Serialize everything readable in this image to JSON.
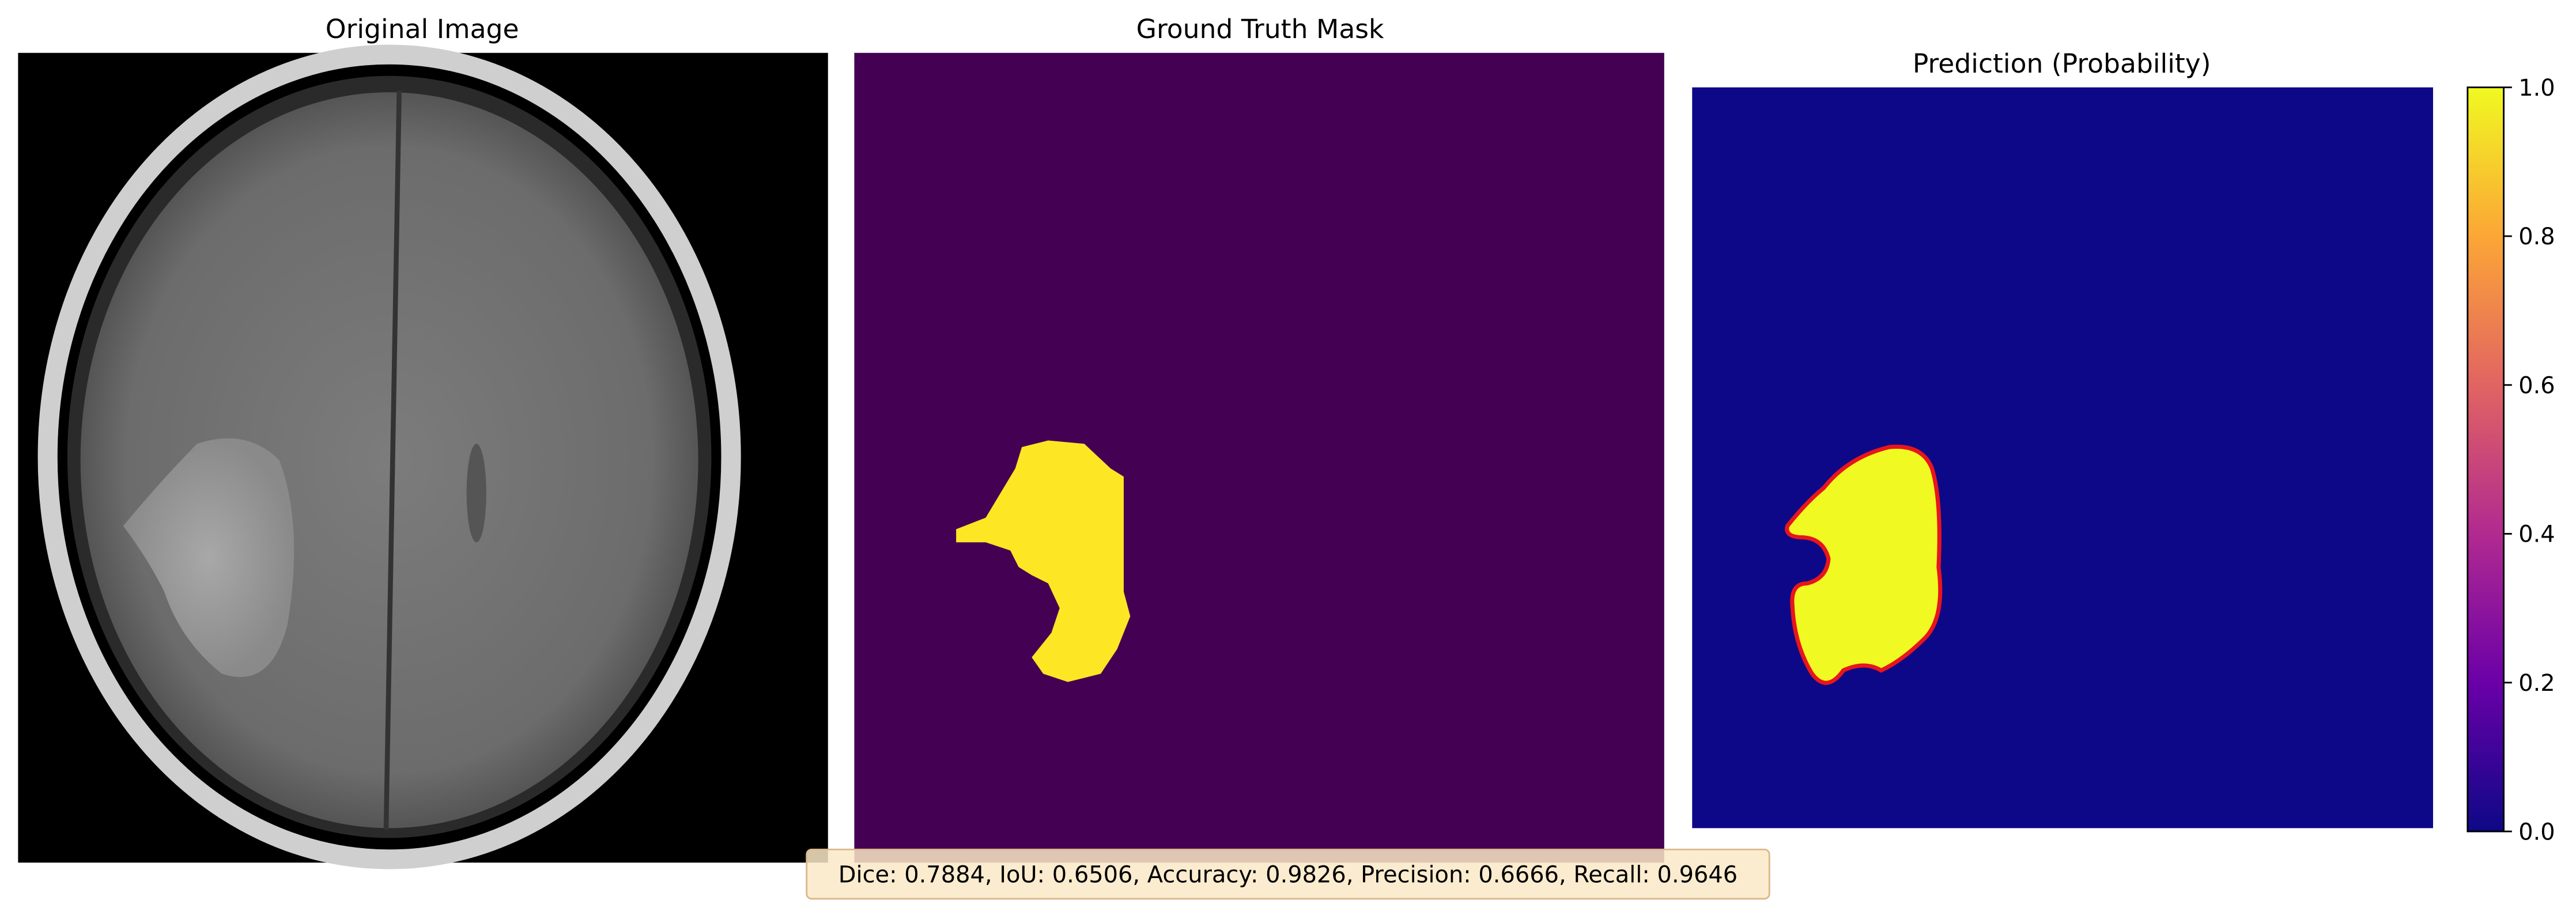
{
  "panels": [
    {
      "title": "Original Image"
    },
    {
      "title": "Ground Truth Mask"
    },
    {
      "title": "Prediction (Probability)"
    }
  ],
  "colorbar": {
    "lim": [
      0,
      1
    ],
    "ticks": [
      {
        "value": 0,
        "label": "0.0"
      },
      0.2,
      0.4,
      0.6,
      0.8,
      {
        "value": 1,
        "label": "1.0"
      }
    ],
    "colormap": "plasma"
  },
  "metrics": "Dice: 0.7884, IoU: 0.6506, Accuracy: 0.9826, Precision: 0.6666, Recall: 0.9646"
}
